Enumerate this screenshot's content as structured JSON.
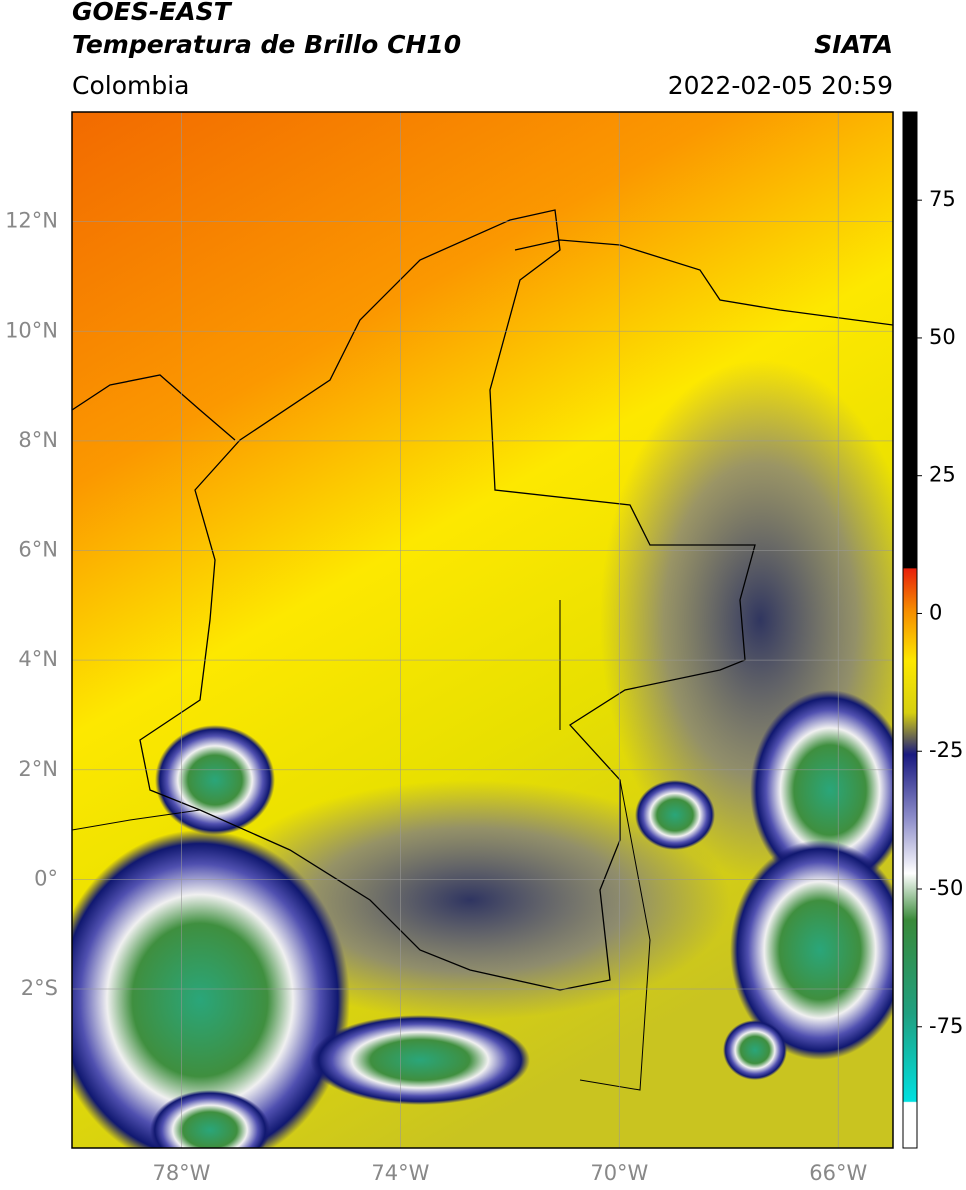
{
  "chart_data": {
    "type": "map",
    "title": "GOES-EAST",
    "subtitle": "Temperatura de Brillo CH10",
    "source": "SIATA",
    "region": "Colombia",
    "datetime": "2022-02-05 20:59",
    "xlim": [
      -80,
      -65
    ],
    "xticks": [
      {
        "value": -78,
        "label": "78°W"
      },
      {
        "value": -74,
        "label": "74°W"
      },
      {
        "value": -70,
        "label": "70°W"
      },
      {
        "value": -66,
        "label": "66°W"
      }
    ],
    "ylim": [
      -4.9,
      14
    ],
    "yticks": [
      {
        "value": -2,
        "label": "2°S"
      },
      {
        "value": 0,
        "label": "0°"
      },
      {
        "value": 2,
        "label": "2°N"
      },
      {
        "value": 4,
        "label": "4°N"
      },
      {
        "value": 6,
        "label": "6°N"
      },
      {
        "value": 8,
        "label": "8°N"
      },
      {
        "value": 10,
        "label": "10°N"
      },
      {
        "value": 12,
        "label": "12°N"
      }
    ],
    "grid": true,
    "colorbar": {
      "lim": [
        -97,
        91
      ],
      "ticks": [
        -75,
        -50,
        -25,
        0,
        25,
        50,
        75
      ]
    }
  }
}
